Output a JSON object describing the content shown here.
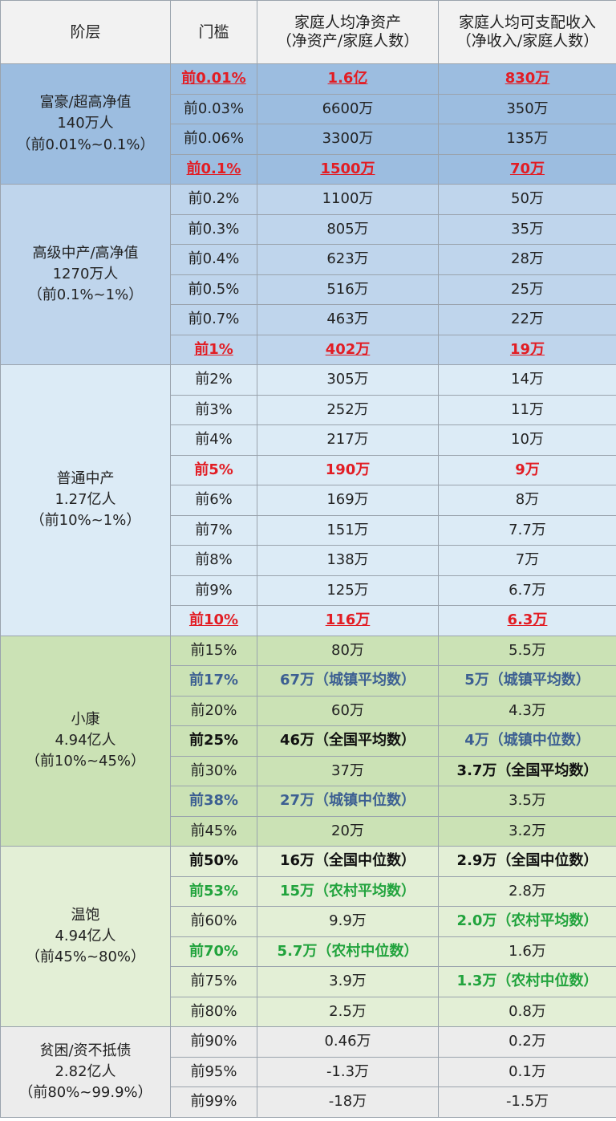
{
  "header": {
    "tier": "阶层",
    "threshold": "门槛",
    "assets_line1": "家庭人均净资产",
    "assets_line2": "（净资产/家庭人数）",
    "income_line1": "家庭人均可支配收入",
    "income_line2": "（净收入/家庭人数）"
  },
  "groups": [
    {
      "name": "富豪/超高净值",
      "population": "140万人",
      "range": "（前0.01%~0.1%）",
      "rows": [
        {
          "threshold": "前0.01%",
          "assets": "1.6亿",
          "income": "830万",
          "ts": "red",
          "as": "red",
          "is": "red"
        },
        {
          "threshold": "前0.03%",
          "assets": "6600万",
          "income": "350万"
        },
        {
          "threshold": "前0.06%",
          "assets": "3300万",
          "income": "135万"
        },
        {
          "threshold": "前0.1%",
          "assets": "1500万",
          "income": "70万",
          "ts": "red",
          "as": "red",
          "is": "red"
        }
      ]
    },
    {
      "name": "高级中产/高净值",
      "population": "1270万人",
      "range": "（前0.1%~1%）",
      "rows": [
        {
          "threshold": "前0.2%",
          "assets": "1100万",
          "income": "50万"
        },
        {
          "threshold": "前0.3%",
          "assets": "805万",
          "income": "35万"
        },
        {
          "threshold": "前0.4%",
          "assets": "623万",
          "income": "28万"
        },
        {
          "threshold": "前0.5%",
          "assets": "516万",
          "income": "25万"
        },
        {
          "threshold": "前0.7%",
          "assets": "463万",
          "income": "22万"
        },
        {
          "threshold": "前1%",
          "assets": "402万",
          "income": "19万",
          "ts": "red",
          "as": "red",
          "is": "red"
        }
      ]
    },
    {
      "name": "普通中产",
      "population": "1.27亿人",
      "range": "（前10%~1%）",
      "rows": [
        {
          "threshold": "前2%",
          "assets": "305万",
          "income": "14万"
        },
        {
          "threshold": "前3%",
          "assets": "252万",
          "income": "11万"
        },
        {
          "threshold": "前4%",
          "assets": "217万",
          "income": "10万"
        },
        {
          "threshold": "前5%",
          "assets": "190万",
          "income": "9万",
          "ts": "red-plain",
          "as": "red-plain",
          "is": "red-plain"
        },
        {
          "threshold": "前6%",
          "assets": "169万",
          "income": "8万"
        },
        {
          "threshold": "前7%",
          "assets": "151万",
          "income": "7.7万"
        },
        {
          "threshold": "前8%",
          "assets": "138万",
          "income": "7万"
        },
        {
          "threshold": "前9%",
          "assets": "125万",
          "income": "6.7万"
        },
        {
          "threshold": "前10%",
          "assets": "116万",
          "income": "6.3万",
          "ts": "red",
          "as": "red",
          "is": "red"
        }
      ]
    },
    {
      "name": "小康",
      "population": "4.94亿人",
      "range": "（前10%~45%）",
      "rows": [
        {
          "threshold": "前15%",
          "assets": "80万",
          "income": "5.5万"
        },
        {
          "threshold": "前17%",
          "assets": "67万（城镇平均数）",
          "income": "5万（城镇平均数）",
          "ts": "blue",
          "as": "blue",
          "is": "blue"
        },
        {
          "threshold": "前20%",
          "assets": "60万",
          "income": "4.3万"
        },
        {
          "threshold": "前25%",
          "assets": "46万（全国平均数）",
          "income": "4万（城镇中位数）",
          "ts": "bold",
          "as": "bold",
          "is": "blue"
        },
        {
          "threshold": "前30%",
          "assets": "37万",
          "income": "3.7万（全国平均数）",
          "is": "bold"
        },
        {
          "threshold": "前38%",
          "assets": "27万（城镇中位数）",
          "income": "3.5万",
          "ts": "blue",
          "as": "blue"
        },
        {
          "threshold": "前45%",
          "assets": "20万",
          "income": "3.2万"
        }
      ]
    },
    {
      "name": "温饱",
      "population": "4.94亿人",
      "range": "（前45%~80%）",
      "rows": [
        {
          "threshold": "前50%",
          "assets": "16万（全国中位数）",
          "income": "2.9万（全国中位数）",
          "ts": "bold",
          "as": "bold",
          "is": "bold"
        },
        {
          "threshold": "前53%",
          "assets": "15万（农村平均数）",
          "income": "2.8万",
          "ts": "green",
          "as": "green"
        },
        {
          "threshold": "前60%",
          "assets": "9.9万",
          "income": "2.0万（农村平均数）",
          "is": "green"
        },
        {
          "threshold": "前70%",
          "assets": "5.7万（农村中位数）",
          "income": "1.6万",
          "ts": "green",
          "as": "green"
        },
        {
          "threshold": "前75%",
          "assets": "3.9万",
          "income": "1.3万（农村中位数）",
          "is": "green"
        },
        {
          "threshold": "前80%",
          "assets": "2.5万",
          "income": "0.8万"
        }
      ]
    },
    {
      "name": "贫困/资不抵债",
      "population": "2.82亿人",
      "range": "（前80%~99.9%）",
      "rows": [
        {
          "threshold": "前90%",
          "assets": "0.46万",
          "income": "0.2万"
        },
        {
          "threshold": "前95%",
          "assets": "-1.3万",
          "income": "0.1万"
        },
        {
          "threshold": "前99%",
          "assets": "-18万",
          "income": "-1.5万"
        }
      ]
    }
  ]
}
